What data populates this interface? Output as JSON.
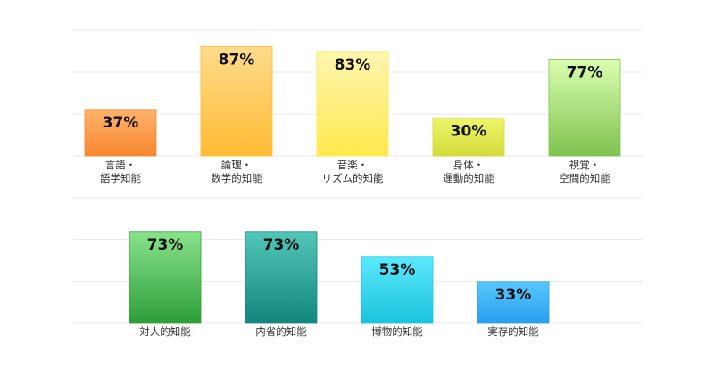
{
  "chart_data": [
    {
      "type": "bar",
      "title": "",
      "xlabel": "",
      "ylabel": "",
      "ylim": [
        0,
        100
      ],
      "grid": true,
      "categories": [
        [
          "言語・",
          "語学知能"
        ],
        [
          "論理・",
          "数学的知能"
        ],
        [
          "音楽・",
          "リズム的知能"
        ],
        [
          "身体・",
          "運動的知能"
        ],
        [
          "視覚・",
          "空間的知能"
        ]
      ],
      "values": [
        37,
        87,
        83,
        30,
        77
      ],
      "value_labels": [
        "37%",
        "87%",
        "83%",
        "30%",
        "77%"
      ],
      "colors": [
        [
          "#ffb36b",
          "#f6872f"
        ],
        [
          "#ffdb8c",
          "#ffbb33"
        ],
        [
          "#fff6b0",
          "#ffe94d"
        ],
        [
          "#eef56a",
          "#d2dc3a"
        ],
        [
          "#d9ffb0",
          "#7fc24f"
        ]
      ]
    },
    {
      "type": "bar",
      "title": "",
      "xlabel": "",
      "ylabel": "",
      "ylim": [
        0,
        100
      ],
      "grid": true,
      "categories": [
        [
          "対人的知能"
        ],
        [
          "内省的知能"
        ],
        [
          "博物的知能"
        ],
        [
          "実存的知能"
        ]
      ],
      "values": [
        73,
        73,
        53,
        33
      ],
      "value_labels": [
        "73%",
        "73%",
        "53%",
        "33%"
      ],
      "colors": [
        [
          "#8ae38a",
          "#2e9e3a"
        ],
        [
          "#52c7b8",
          "#13877d"
        ],
        [
          "#5ce9ff",
          "#1bc3dc"
        ],
        [
          "#58c8ff",
          "#2aa0ee"
        ]
      ]
    }
  ]
}
